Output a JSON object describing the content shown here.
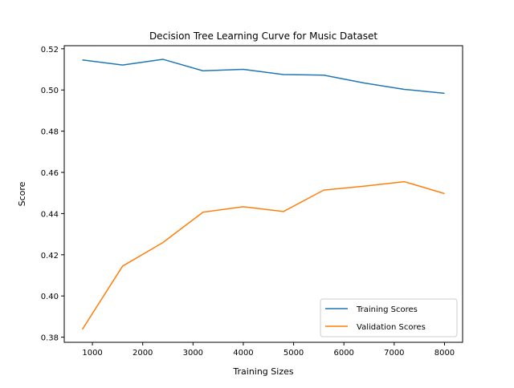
{
  "chart_data": {
    "type": "line",
    "title": "Decision Tree Learning Curve for Music Dataset",
    "xlabel": "Training Sizes",
    "ylabel": "Score",
    "xlim": [
      440,
      8360
    ],
    "ylim": [
      0.3775,
      0.5215
    ],
    "xticks": [
      1000,
      2000,
      3000,
      4000,
      5000,
      6000,
      7000,
      8000
    ],
    "xtick_labels": [
      "1000",
      "2000",
      "3000",
      "4000",
      "5000",
      "6000",
      "7000",
      "8000"
    ],
    "yticks": [
      0.38,
      0.4,
      0.42,
      0.44,
      0.46,
      0.48,
      0.5,
      0.52
    ],
    "ytick_labels": [
      "0.38",
      "0.40",
      "0.42",
      "0.44",
      "0.46",
      "0.48",
      "0.50",
      "0.52"
    ],
    "x": [
      800,
      1600,
      2400,
      3200,
      4000,
      4800,
      5600,
      6400,
      7200,
      8000
    ],
    "series": [
      {
        "name": "Training Scores",
        "color": "#1f77b4",
        "values": [
          0.5146,
          0.5121,
          0.5149,
          0.5093,
          0.51,
          0.5075,
          0.5072,
          0.5034,
          0.5003,
          0.4984
        ]
      },
      {
        "name": "Validation Scores",
        "color": "#ff7f0e",
        "values": [
          0.3838,
          0.4145,
          0.4259,
          0.4407,
          0.4433,
          0.441,
          0.4514,
          0.4533,
          0.4555,
          0.4497
        ]
      }
    ],
    "grid": false,
    "legend_position": "lower-right"
  }
}
